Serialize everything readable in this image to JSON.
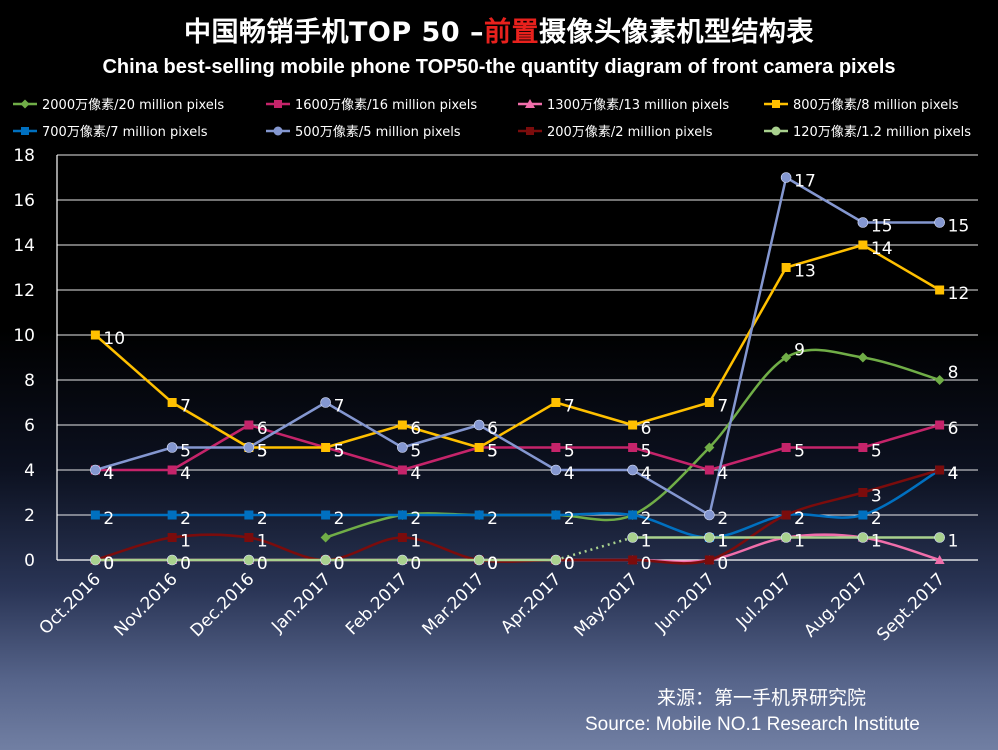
{
  "title": {
    "prefix": "中国畅销手机TOP 50 –",
    "highlight": "前置",
    "suffix": "摄像头像素机型结构表"
  },
  "subtitle": "China best-selling mobile phone TOP50-the quantity diagram of front camera pixels",
  "source": {
    "cn": "来源：第一手机界研究院",
    "en": "Source: Mobile NO.1 Research Institute"
  },
  "chart_data": {
    "type": "line",
    "title": "中国畅销手机TOP 50 –前置摄像头像素机型结构表",
    "subtitle": "China best-selling mobile phone TOP50-the quantity diagram of front camera pixels",
    "categories": [
      "Oct.2016",
      "Nov.2016",
      "Dec.2016",
      "Jan.2017",
      "Feb.2017",
      "Mar.2017",
      "Apr.2017",
      "May.2017",
      "Jun.2017",
      "Jul.2017",
      "Aug.2017",
      "Sept.2017"
    ],
    "ylim": [
      0,
      18
    ],
    "yticks": [
      0,
      2,
      4,
      6,
      8,
      10,
      12,
      14,
      16,
      18
    ],
    "grid": true,
    "legend_position": "top",
    "series": [
      {
        "name": "2000万像素/20 million pixels",
        "color": "#70ad47",
        "marker": "diamond",
        "smooth": true,
        "labels": false,
        "values": [
          null,
          null,
          null,
          1,
          2,
          2,
          2,
          2,
          5,
          9,
          9,
          8
        ],
        "end_labels": [
          {
            "i": 9,
            "text": "9"
          },
          {
            "i": 11,
            "text": "8"
          }
        ]
      },
      {
        "name": "1600万像素/16 million pixels",
        "color": "#c5246a",
        "marker": "square",
        "smooth": false,
        "labels": true,
        "values": [
          4,
          4,
          6,
          5,
          4,
          5,
          5,
          5,
          4,
          5,
          5,
          6
        ]
      },
      {
        "name": "1300万像素/13 million pixels",
        "color": "#f06eaa",
        "marker": "triangle",
        "smooth": true,
        "labels": false,
        "values": [
          0,
          0,
          0,
          0,
          0,
          0,
          0,
          0,
          0,
          1,
          1,
          0
        ]
      },
      {
        "name": "800万像素/8 million pixels",
        "color": "#ffc000",
        "marker": "square",
        "smooth": false,
        "labels": true,
        "values": [
          10,
          7,
          5,
          5,
          6,
          5,
          7,
          6,
          7,
          13,
          14,
          12
        ]
      },
      {
        "name": "700万像素/7 million pixels",
        "color": "#0070c0",
        "marker": "square",
        "smooth": true,
        "labels": true,
        "values": [
          2,
          2,
          2,
          2,
          2,
          2,
          2,
          2,
          1,
          2,
          2,
          4
        ]
      },
      {
        "name": "500万像素/5 million pixels",
        "color": "#8497d0",
        "marker": "circle",
        "smooth": false,
        "labels": true,
        "values": [
          4,
          5,
          5,
          7,
          5,
          6,
          4,
          4,
          2,
          17,
          15,
          15
        ]
      },
      {
        "name": "200万像素/2 million pixels",
        "color": "#7b0c0c",
        "marker": "square",
        "smooth": true,
        "labels": true,
        "values": [
          0,
          1,
          1,
          0,
          1,
          0,
          0,
          0,
          0,
          2,
          3,
          4
        ]
      },
      {
        "name": "120万像素/1.2 million pixels",
        "color": "#a9d18e",
        "marker": "circle",
        "smooth": false,
        "labels": true,
        "values": [
          0,
          0,
          0,
          0,
          0,
          0,
          0,
          1,
          1,
          1,
          1,
          1
        ],
        "dotted_segments": [
          6
        ]
      }
    ]
  }
}
